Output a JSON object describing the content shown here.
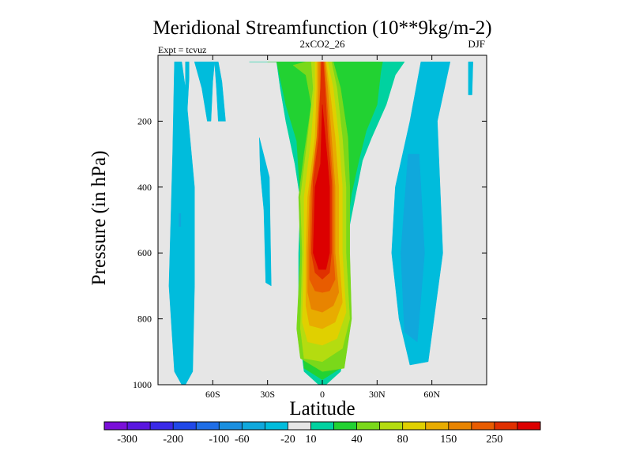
{
  "header": {
    "title": "Meridional Streamfunction (10**9kg/m-2)",
    "left_label": "Expt = tcvuz",
    "center_label": "2xCO2_26",
    "right_label": "DJF"
  },
  "chart_data": {
    "type": "contour",
    "title": "Meridional Streamfunction (10**9kg/m-2)",
    "xlabel": "Latitude",
    "ylabel": "Pressure (in hPa)",
    "xlim": [
      -90,
      90
    ],
    "ylim": [
      1000,
      0
    ],
    "x_ticks": [
      {
        "value": -60,
        "label": "60S"
      },
      {
        "value": -30,
        "label": "30S"
      },
      {
        "value": 0,
        "label": "0"
      },
      {
        "value": 30,
        "label": "30N"
      },
      {
        "value": 60,
        "label": "60N"
      }
    ],
    "y_ticks": [
      {
        "value": 200,
        "label": "200"
      },
      {
        "value": 400,
        "label": "400"
      },
      {
        "value": 600,
        "label": "600"
      },
      {
        "value": 800,
        "label": "800"
      },
      {
        "value": 1000,
        "label": "1000"
      }
    ],
    "background_color": "#e6e6e6",
    "colorbar": {
      "colors": [
        "#7a0fd8",
        "#5a17e0",
        "#3a2ae8",
        "#2048e8",
        "#1f6ee6",
        "#1a8fe0",
        "#10a8dc",
        "#00bcdc",
        "#e6e6e6",
        "#00d2a0",
        "#22d232",
        "#7ad81a",
        "#b4dc10",
        "#e0d000",
        "#e8ac00",
        "#e88400",
        "#e85c00",
        "#e03000",
        "#dc0000"
      ],
      "labels": [
        {
          "after_index": 0,
          "text": "-300"
        },
        {
          "after_index": 2,
          "text": "-200"
        },
        {
          "after_index": 4,
          "text": "-100"
        },
        {
          "after_index": 5,
          "text": "-60"
        },
        {
          "after_index": 7,
          "text": "-20"
        },
        {
          "after_index": 8,
          "text": "10"
        },
        {
          "after_index": 10,
          "text": "40"
        },
        {
          "after_index": 12,
          "text": "80"
        },
        {
          "after_index": 14,
          "text": "150"
        },
        {
          "after_index": 16,
          "text": "250"
        }
      ]
    },
    "regions": [
      {
        "name": "sh-negative-cell",
        "color": "#00bcdc",
        "points": [
          [
            -81,
            20
          ],
          [
            -77,
            20
          ],
          [
            -75,
            100
          ],
          [
            -70,
            400
          ],
          [
            -70,
            700
          ],
          [
            -71,
            960
          ],
          [
            -76,
            1010
          ],
          [
            -81,
            960
          ],
          [
            -84,
            700
          ],
          [
            -82,
            300
          ]
        ]
      },
      {
        "name": "sh-negative-cell-core",
        "color": "#10a8dc",
        "points": [
          [
            -78.5,
            480
          ],
          [
            -77.5,
            480
          ],
          [
            -77.5,
            520
          ],
          [
            -78.5,
            520
          ]
        ]
      },
      {
        "name": "sh-negative-spot",
        "color": "#00bcdc",
        "points": [
          [
            -75,
            20
          ],
          [
            -73,
            20
          ],
          [
            -73,
            70
          ],
          [
            -74,
            170
          ],
          [
            -75,
            120
          ]
        ]
      },
      {
        "name": "sh-upper-left-cell",
        "color": "#00bcdc",
        "points": [
          [
            -70,
            20
          ],
          [
            -59,
            20
          ],
          [
            -60,
            80
          ],
          [
            -61,
            200
          ],
          [
            -63,
            200
          ],
          [
            -66,
            100
          ]
        ]
      },
      {
        "name": "sh-upper-mid-cell",
        "color": "#00bcdc",
        "points": [
          [
            -59,
            20
          ],
          [
            -57,
            20
          ],
          [
            -55,
            80
          ],
          [
            -53,
            200
          ],
          [
            -57,
            200
          ],
          [
            -58,
            100
          ]
        ]
      },
      {
        "name": "sh-midlevel-cell",
        "color": "#00bcdc",
        "points": [
          [
            -34.5,
            250
          ],
          [
            -29,
            370
          ],
          [
            -28,
            700
          ],
          [
            -31,
            690
          ],
          [
            -32,
            470
          ],
          [
            -34,
            350
          ]
        ]
      },
      {
        "name": "nh-upper-spot",
        "color": "#00bcdc",
        "points": [
          [
            80,
            20
          ],
          [
            82.5,
            20
          ],
          [
            82,
            120
          ],
          [
            80,
            120
          ]
        ]
      },
      {
        "name": "nh-negative-cell",
        "color": "#00bcdc",
        "points": [
          [
            57,
            20
          ],
          [
            70,
            20
          ],
          [
            63,
            200
          ],
          [
            66,
            600
          ],
          [
            58,
            930
          ],
          [
            48,
            940
          ],
          [
            42,
            800
          ],
          [
            38,
            600
          ],
          [
            40,
            400
          ],
          [
            48,
            200
          ],
          [
            54,
            20
          ]
        ]
      },
      {
        "name": "nh-negative-cell-core",
        "color": "#10a8dc",
        "points": [
          [
            47,
            300
          ],
          [
            53,
            300
          ],
          [
            56,
            600
          ],
          [
            52,
            870
          ],
          [
            45,
            840
          ],
          [
            43,
            600
          ]
        ]
      },
      {
        "name": "streamfunction-l1",
        "color": "#00d2a0",
        "points": [
          [
            -40,
            20
          ],
          [
            -25,
            20
          ],
          [
            -23,
            100
          ],
          [
            -20,
            200
          ],
          [
            -15,
            330
          ],
          [
            -12,
            440
          ],
          [
            -13,
            600
          ],
          [
            -13,
            830
          ],
          [
            -10,
            960
          ],
          [
            0,
            1010
          ],
          [
            10,
            960
          ],
          [
            14,
            840
          ],
          [
            12,
            600
          ],
          [
            18,
            430
          ],
          [
            22,
            320
          ],
          [
            27,
            250
          ],
          [
            35,
            150
          ],
          [
            40,
            60
          ],
          [
            45,
            20
          ]
        ]
      },
      {
        "name": "streamfunction-l2",
        "color": "#22d232",
        "points": [
          [
            -30,
            20
          ],
          [
            -25,
            20
          ],
          [
            -20,
            150
          ],
          [
            -14,
            260
          ],
          [
            -12,
            440
          ],
          [
            -12,
            600
          ],
          [
            -12,
            800
          ],
          [
            -10,
            950
          ],
          [
            0,
            985
          ],
          [
            10,
            950
          ],
          [
            12,
            800
          ],
          [
            12,
            580
          ],
          [
            16,
            420
          ],
          [
            20,
            320
          ],
          [
            24,
            230
          ],
          [
            30,
            150
          ],
          [
            32,
            50
          ],
          [
            33,
            20
          ]
        ]
      },
      {
        "name": "streamfunction-l3",
        "color": "#7ad81a",
        "points": [
          [
            -9,
            20
          ],
          [
            6,
            20
          ],
          [
            10,
            100
          ],
          [
            14,
            250
          ],
          [
            15,
            400
          ],
          [
            15,
            600
          ],
          [
            16,
            800
          ],
          [
            12,
            950
          ],
          [
            0,
            960
          ],
          [
            -12,
            920
          ],
          [
            -14,
            830
          ],
          [
            -12,
            600
          ],
          [
            -13,
            430
          ],
          [
            -10,
            300
          ],
          [
            -6,
            150
          ],
          [
            -9,
            60
          ],
          [
            -16,
            30
          ]
        ]
      },
      {
        "name": "streamfunction-l4",
        "color": "#b4dc10",
        "points": [
          [
            -6,
            20
          ],
          [
            5,
            20
          ],
          [
            8,
            100
          ],
          [
            11,
            250
          ],
          [
            13,
            400
          ],
          [
            13,
            600
          ],
          [
            15,
            800
          ],
          [
            11,
            890
          ],
          [
            0,
            930
          ],
          [
            -10,
            920
          ],
          [
            -12,
            830
          ],
          [
            -11,
            600
          ],
          [
            -12,
            430
          ],
          [
            -8,
            250
          ],
          [
            -5,
            100
          ]
        ]
      },
      {
        "name": "streamfunction-l5",
        "color": "#e0d000",
        "points": [
          [
            -4,
            20
          ],
          [
            3,
            20
          ],
          [
            6,
            100
          ],
          [
            9,
            250
          ],
          [
            11,
            400
          ],
          [
            11,
            600
          ],
          [
            13,
            780
          ],
          [
            8,
            860
          ],
          [
            0,
            880
          ],
          [
            -8,
            870
          ],
          [
            -11,
            810
          ],
          [
            -10,
            600
          ],
          [
            -10,
            430
          ],
          [
            -6,
            250
          ],
          [
            -4,
            100
          ]
        ]
      },
      {
        "name": "streamfunction-l6",
        "color": "#e8ac00",
        "points": [
          [
            -3,
            20
          ],
          [
            2,
            20
          ],
          [
            4,
            100
          ],
          [
            7,
            250
          ],
          [
            9,
            400
          ],
          [
            9,
            600
          ],
          [
            11,
            750
          ],
          [
            7,
            810
          ],
          [
            0,
            830
          ],
          [
            -7,
            820
          ],
          [
            -9,
            760
          ],
          [
            -9,
            600
          ],
          [
            -8,
            430
          ],
          [
            -4,
            250
          ],
          [
            -3,
            100
          ]
        ]
      },
      {
        "name": "streamfunction-l7",
        "color": "#e88400",
        "points": [
          [
            -2,
            20
          ],
          [
            1.5,
            20
          ],
          [
            3,
            100
          ],
          [
            5,
            250
          ],
          [
            7,
            400
          ],
          [
            7,
            600
          ],
          [
            9,
            720
          ],
          [
            6,
            760
          ],
          [
            0,
            780
          ],
          [
            -6,
            770
          ],
          [
            -8,
            720
          ],
          [
            -8,
            600
          ],
          [
            -7,
            430
          ],
          [
            -3,
            250
          ],
          [
            -2,
            100
          ]
        ]
      },
      {
        "name": "streamfunction-l8",
        "color": "#e85c00",
        "points": [
          [
            -1,
            20
          ],
          [
            1,
            20
          ],
          [
            2,
            100
          ],
          [
            4,
            250
          ],
          [
            6,
            400
          ],
          [
            6,
            600
          ],
          [
            7,
            680
          ],
          [
            4,
            715
          ],
          [
            0,
            720
          ],
          [
            -4,
            715
          ],
          [
            -7,
            680
          ],
          [
            -7,
            600
          ],
          [
            -6,
            400
          ],
          [
            -3,
            250
          ],
          [
            -1,
            100
          ]
        ]
      },
      {
        "name": "streamfunction-l9",
        "color": "#e03000",
        "points": [
          [
            -0.5,
            20
          ],
          [
            0.5,
            20
          ],
          [
            1.5,
            100
          ],
          [
            3,
            250
          ],
          [
            5,
            380
          ],
          [
            5,
            600
          ],
          [
            4,
            660
          ],
          [
            0,
            680
          ],
          [
            -4,
            660
          ],
          [
            -6,
            600
          ],
          [
            -5,
            380
          ],
          [
            -2,
            250
          ],
          [
            -1,
            100
          ]
        ]
      },
      {
        "name": "streamfunction-l10",
        "color": "#dc0000",
        "points": [
          [
            0,
            150
          ],
          [
            3,
            330
          ],
          [
            4,
            400
          ],
          [
            4,
            600
          ],
          [
            2,
            650
          ],
          [
            -2,
            650
          ],
          [
            -5,
            600
          ],
          [
            -4,
            400
          ],
          [
            -1,
            330
          ]
        ]
      }
    ]
  }
}
